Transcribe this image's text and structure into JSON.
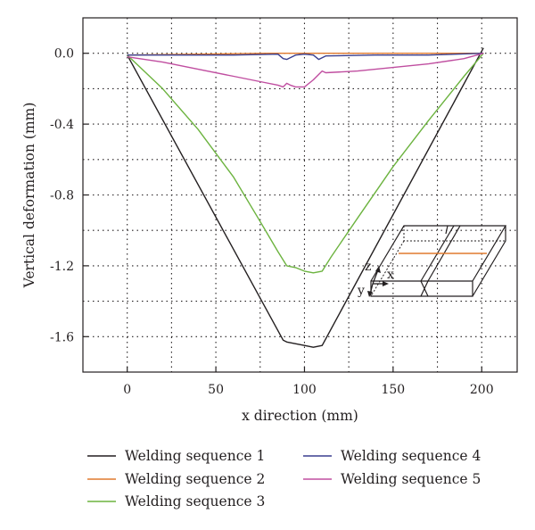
{
  "chart_data": {
    "type": "line",
    "title": "",
    "xlabel": "x direction (mm)",
    "ylabel": "Vertical deformation (mm)",
    "xlim": [
      -25,
      220
    ],
    "ylim": [
      -1.8,
      0.2
    ],
    "x_ticks": [
      0,
      50,
      100,
      150,
      200
    ],
    "y_ticks": [
      0.0,
      -0.4,
      -0.8,
      -1.2,
      -1.6
    ],
    "x_tick_labels": [
      "0",
      "50",
      "100",
      "150",
      "200"
    ],
    "y_tick_labels": [
      "0.0",
      "-0.4",
      "-0.8",
      "-1.2",
      "-1.6"
    ],
    "grid": true,
    "legend_position": "bottom",
    "series": [
      {
        "name": "Welding sequence 1",
        "color": "#231f20",
        "x": [
          0,
          88,
          90,
          100,
          105,
          110,
          201
        ],
        "y": [
          -0.01,
          -1.62,
          -1.63,
          -1.65,
          -1.66,
          -1.65,
          0.03
        ]
      },
      {
        "name": "Welding sequence 2",
        "color": "#e07a2e",
        "x": [
          0,
          40,
          80,
          100,
          120,
          160,
          201
        ],
        "y": [
          -0.01,
          -0.005,
          0.0,
          0.0,
          0.0,
          0.0,
          0.0
        ]
      },
      {
        "name": "Welding sequence 3",
        "color": "#6cb33f",
        "x": [
          0,
          20,
          40,
          60,
          75,
          85,
          90,
          95,
          100,
          105,
          110,
          115,
          130,
          150,
          170,
          190,
          201
        ],
        "y": [
          -0.01,
          -0.2,
          -0.43,
          -0.7,
          -0.95,
          -1.12,
          -1.2,
          -1.21,
          -1.23,
          -1.24,
          -1.23,
          -1.15,
          -0.93,
          -0.64,
          -0.38,
          -0.13,
          0.0
        ]
      },
      {
        "name": "Welding sequence 4",
        "color": "#3a3f8f",
        "x": [
          0,
          60,
          85,
          88,
          90,
          95,
          100,
          105,
          108,
          112,
          140,
          170,
          201
        ],
        "y": [
          -0.01,
          -0.01,
          -0.005,
          -0.03,
          -0.035,
          -0.01,
          -0.005,
          -0.01,
          -0.035,
          -0.015,
          -0.01,
          -0.01,
          0.0
        ]
      },
      {
        "name": "Welding sequence 5",
        "color": "#c04ea0",
        "x": [
          0,
          20,
          40,
          60,
          75,
          85,
          88,
          90,
          92,
          95,
          100,
          105,
          108,
          110,
          112,
          130,
          150,
          170,
          190,
          201
        ],
        "y": [
          -0.02,
          -0.05,
          -0.09,
          -0.13,
          -0.16,
          -0.18,
          -0.19,
          -0.17,
          -0.18,
          -0.19,
          -0.19,
          -0.15,
          -0.12,
          -0.1,
          -0.11,
          -0.1,
          -0.08,
          -0.06,
          -0.03,
          0.0
        ]
      }
    ]
  },
  "inset": {
    "labels": {
      "z": "z",
      "x": "x",
      "y": "y"
    },
    "line_color": "#231f20",
    "weld_color": "#e07a2e"
  }
}
